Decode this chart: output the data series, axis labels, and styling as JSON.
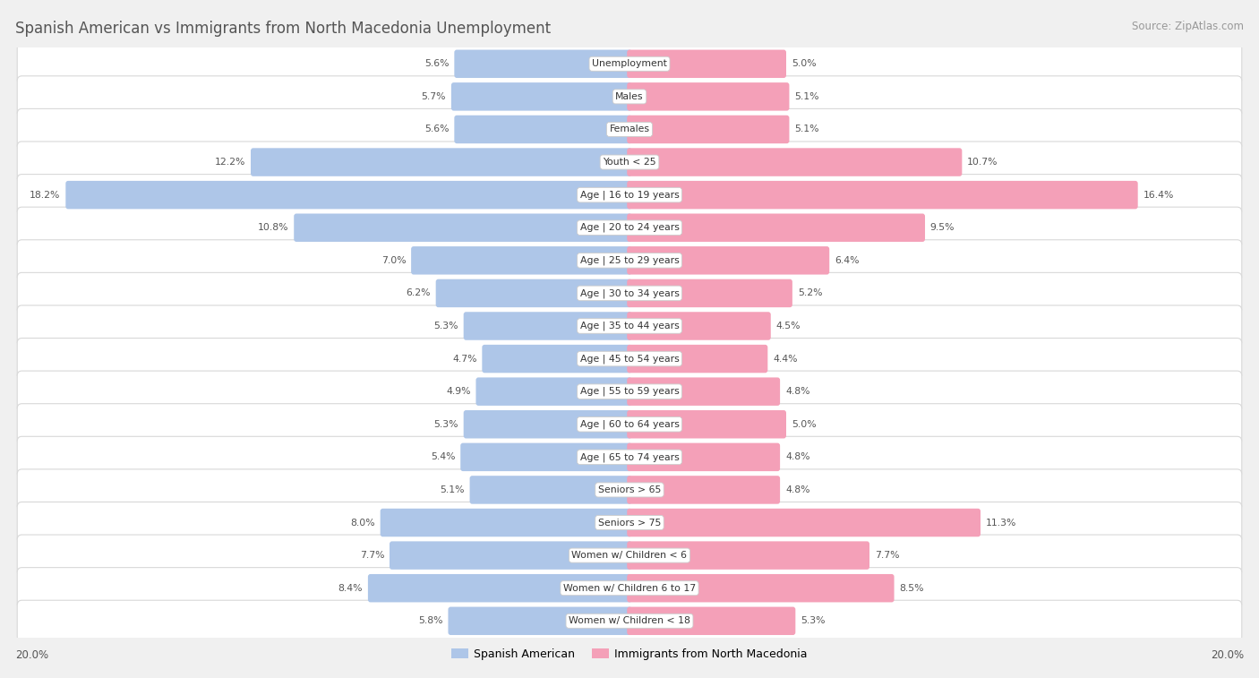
{
  "title": "Spanish American vs Immigrants from North Macedonia Unemployment",
  "source": "Source: ZipAtlas.com",
  "categories": [
    "Unemployment",
    "Males",
    "Females",
    "Youth < 25",
    "Age | 16 to 19 years",
    "Age | 20 to 24 years",
    "Age | 25 to 29 years",
    "Age | 30 to 34 years",
    "Age | 35 to 44 years",
    "Age | 45 to 54 years",
    "Age | 55 to 59 years",
    "Age | 60 to 64 years",
    "Age | 65 to 74 years",
    "Seniors > 65",
    "Seniors > 75",
    "Women w/ Children < 6",
    "Women w/ Children 6 to 17",
    "Women w/ Children < 18"
  ],
  "spanish_american": [
    5.6,
    5.7,
    5.6,
    12.2,
    18.2,
    10.8,
    7.0,
    6.2,
    5.3,
    4.7,
    4.9,
    5.3,
    5.4,
    5.1,
    8.0,
    7.7,
    8.4,
    5.8
  ],
  "north_macedonia": [
    5.0,
    5.1,
    5.1,
    10.7,
    16.4,
    9.5,
    6.4,
    5.2,
    4.5,
    4.4,
    4.8,
    5.0,
    4.8,
    4.8,
    11.3,
    7.7,
    8.5,
    5.3
  ],
  "color_blue": "#aec6e8",
  "color_pink": "#f4a0b8",
  "axis_limit": 20.0,
  "bg_color": "#f0f0f0",
  "legend_label_blue": "Spanish American",
  "legend_label_pink": "Immigrants from North Macedonia"
}
